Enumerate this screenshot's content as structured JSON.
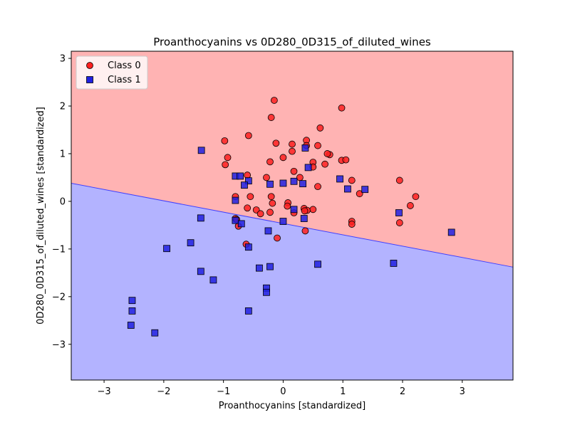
{
  "chart_data": {
    "type": "scatter",
    "title": "Proanthocyanins vs 0D280_0D315_of_diluted_wines",
    "xlabel": "Proanthocyanins [standardized]",
    "ylabel": "0D280_0D315_of_diluted_wines [standardized]",
    "xlim": [
      -3.55,
      3.85
    ],
    "ylim": [
      -3.75,
      3.15
    ],
    "xticks": [
      -3,
      -2,
      -1,
      0,
      1,
      2,
      3
    ],
    "xtick_labels": [
      "−3",
      "−2",
      "−1",
      "0",
      "1",
      "2",
      "3"
    ],
    "yticks": [
      -3,
      -2,
      -1,
      0,
      1,
      2,
      3
    ],
    "ytick_labels": [
      "−3",
      "−2",
      "−1",
      "0",
      "1",
      "2",
      "3"
    ],
    "grid": false,
    "legend_position": "top-left",
    "decision_boundary": {
      "line": [
        [
          -3.55,
          0.38
        ],
        [
          3.85,
          -1.38
        ]
      ],
      "region_above": "Class 0",
      "region_below": "Class 1",
      "region_above_color": "#ffb3b3",
      "region_below_color": "#b3b3ff",
      "line_color": "#4040ff"
    },
    "series": [
      {
        "name": "Class 0",
        "marker": "circle",
        "color": "#ff2020",
        "points": [
          [
            -0.15,
            2.12
          ],
          [
            0.98,
            1.96
          ],
          [
            -0.2,
            1.76
          ],
          [
            0.62,
            1.54
          ],
          [
            -0.58,
            1.38
          ],
          [
            -0.98,
            1.27
          ],
          [
            -0.12,
            1.22
          ],
          [
            0.15,
            1.2
          ],
          [
            0.39,
            1.28
          ],
          [
            0.39,
            1.17
          ],
          [
            0.58,
            1.17
          ],
          [
            0.15,
            1.05
          ],
          [
            0.78,
            0.98
          ],
          [
            0.74,
            1.0
          ],
          [
            0.0,
            0.92
          ],
          [
            -0.93,
            0.92
          ],
          [
            0.98,
            0.86
          ],
          [
            1.05,
            0.87
          ],
          [
            -0.22,
            0.83
          ],
          [
            0.5,
            0.82
          ],
          [
            0.7,
            0.78
          ],
          [
            -0.97,
            0.77
          ],
          [
            0.5,
            0.72
          ],
          [
            0.18,
            0.63
          ],
          [
            -0.6,
            0.55
          ],
          [
            -0.28,
            0.5
          ],
          [
            0.28,
            0.5
          ],
          [
            1.15,
            0.44
          ],
          [
            1.95,
            0.44
          ],
          [
            0.58,
            0.31
          ],
          [
            1.28,
            0.16
          ],
          [
            -0.8,
            0.1
          ],
          [
            -0.55,
            0.1
          ],
          [
            -0.2,
            0.1
          ],
          [
            2.22,
            0.1
          ],
          [
            0.08,
            -0.03
          ],
          [
            -0.18,
            -0.04
          ],
          [
            2.13,
            -0.09
          ],
          [
            0.07,
            -0.1
          ],
          [
            -0.6,
            -0.14
          ],
          [
            0.35,
            -0.15
          ],
          [
            0.5,
            -0.17
          ],
          [
            0.4,
            -0.19
          ],
          [
            -0.45,
            -0.18
          ],
          [
            0.36,
            -0.2
          ],
          [
            -0.22,
            -0.23
          ],
          [
            0.18,
            -0.24
          ],
          [
            -0.38,
            -0.26
          ],
          [
            -0.8,
            -0.36
          ],
          [
            -0.78,
            -0.38
          ],
          [
            1.15,
            -0.42
          ],
          [
            1.95,
            -0.45
          ],
          [
            1.15,
            -0.48
          ],
          [
            -0.75,
            -0.52
          ],
          [
            0.37,
            -0.62
          ],
          [
            -0.1,
            -0.77
          ],
          [
            -0.62,
            -0.9
          ]
        ]
      },
      {
        "name": "Class 1",
        "marker": "square",
        "color": "#2020e0",
        "points": [
          [
            -1.37,
            1.07
          ],
          [
            0.37,
            1.12
          ],
          [
            0.42,
            0.71
          ],
          [
            -0.8,
            0.53
          ],
          [
            -0.72,
            0.53
          ],
          [
            -0.58,
            0.43
          ],
          [
            0.95,
            0.47
          ],
          [
            0.18,
            0.42
          ],
          [
            0.0,
            0.38
          ],
          [
            0.33,
            0.37
          ],
          [
            -0.22,
            0.36
          ],
          [
            -0.65,
            0.34
          ],
          [
            1.08,
            0.26
          ],
          [
            1.37,
            0.25
          ],
          [
            -0.8,
            0.02
          ],
          [
            0.18,
            -0.17
          ],
          [
            1.94,
            -0.24
          ],
          [
            -1.38,
            -0.35
          ],
          [
            0.35,
            -0.36
          ],
          [
            -0.8,
            -0.4
          ],
          [
            0.0,
            -0.42
          ],
          [
            -0.7,
            -0.47
          ],
          [
            -0.25,
            -0.62
          ],
          [
            2.82,
            -0.65
          ],
          [
            -0.58,
            -0.96
          ],
          [
            -1.95,
            -0.99
          ],
          [
            -1.55,
            -0.87
          ],
          [
            -0.22,
            -1.37
          ],
          [
            -0.4,
            -1.4
          ],
          [
            0.58,
            -1.32
          ],
          [
            1.85,
            -1.3
          ],
          [
            -1.38,
            -1.47
          ],
          [
            -1.17,
            -1.65
          ],
          [
            -0.28,
            -1.82
          ],
          [
            -0.28,
            -1.91
          ],
          [
            -2.53,
            -2.08
          ],
          [
            -2.53,
            -2.3
          ],
          [
            -0.58,
            -2.3
          ],
          [
            -2.55,
            -2.6
          ],
          [
            -2.15,
            -2.76
          ]
        ]
      }
    ]
  }
}
